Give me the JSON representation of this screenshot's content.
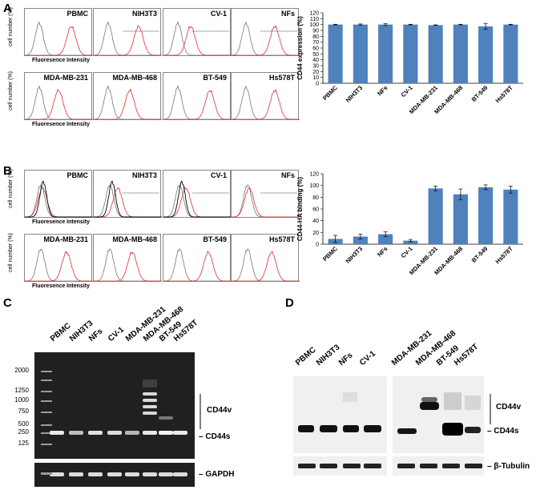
{
  "panels": {
    "A": "A",
    "B": "B",
    "C": "C",
    "D": "D"
  },
  "flow_common": {
    "ylabel": "cell number (%)",
    "xlabel": "Fluoresence Intensity"
  },
  "flowA": {
    "row1": [
      "PBMC",
      "NIH3T3",
      "CV-1",
      "NFs"
    ],
    "row2": [
      "MDA-MB-231",
      "MDA-MB-468",
      "BT-549",
      "Hs578T"
    ]
  },
  "flowB": {
    "row1": [
      "PBMC",
      "NIH3T3",
      "CV-1",
      "NFs"
    ],
    "row2": [
      "MDA-MB-231",
      "MDA-MB-468",
      "BT-549",
      "Hs578T"
    ]
  },
  "chart_data": [
    {
      "type": "bar",
      "ylabel": "CD44 expression (%)",
      "categories": [
        "PBMC",
        "NIH3T3",
        "NFs",
        "CV-1",
        "MDA-MB-231",
        "MDA-MB-468",
        "BT-549",
        "Hs578T"
      ],
      "values": [
        100,
        100,
        100,
        100,
        99,
        100,
        97,
        100
      ],
      "errors": [
        0.5,
        1,
        1.5,
        0.5,
        0.5,
        0.5,
        5,
        0.5
      ],
      "ylim": [
        0,
        120
      ],
      "yticks": [
        "0",
        "10",
        "20",
        "30",
        "40",
        "50",
        "60",
        "70",
        "80",
        "90",
        "100",
        "110",
        "120"
      ],
      "color": "#4f81bd"
    },
    {
      "type": "bar",
      "ylabel": "CD44-HA binding (%)",
      "categories": [
        "PBMC",
        "NIH3T3",
        "NFs",
        "CV-1",
        "MDA-MB-231",
        "MDA-MB-468",
        "BT-549",
        "Hs578T"
      ],
      "values": [
        9,
        13,
        17,
        6,
        95,
        85,
        97,
        93
      ],
      "errors": [
        6,
        4,
        4,
        2,
        4,
        9,
        4,
        6
      ],
      "ylim": [
        0,
        120
      ],
      "yticks": [
        "0",
        "20",
        "40",
        "60",
        "80",
        "100",
        "120"
      ],
      "color": "#4f81bd"
    }
  ],
  "gelC": {
    "lanes": [
      "PBMC",
      "NIH3T3",
      "NFs",
      "CV-1",
      "MDA-MB-231",
      "MDA-MB-468",
      "BT-549",
      "Hs578T"
    ],
    "ladder": [
      "2000",
      "1250",
      "1000",
      "750",
      "500",
      "250",
      "125"
    ],
    "labels": {
      "variant": "CD44v",
      "standard": "CD44s",
      "control": "GAPDH"
    }
  },
  "blotD": {
    "lanes": [
      "PBMC",
      "NIH3T3",
      "NFs",
      "CV-1",
      "MDA-MB-231",
      "MDA-MB-468",
      "BT-549",
      "Hs578T"
    ],
    "labels": {
      "variant": "CD44v",
      "standard": "CD44s",
      "control": "β-Tubulin"
    }
  }
}
